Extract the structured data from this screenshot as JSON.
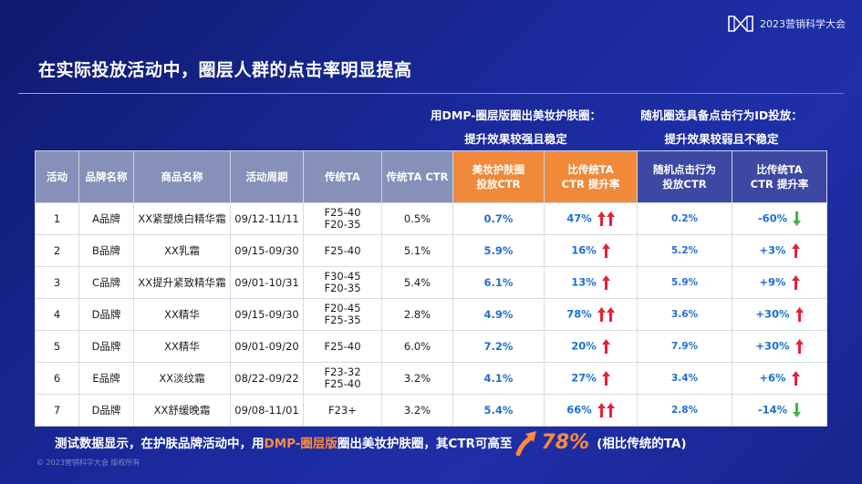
{
  "brand": {
    "logo_text": "2023营销科学大会"
  },
  "title": "在实际投放活动中，圈层人群的点击率明显提高",
  "group_headers": {
    "dmp_line1": "用DMP-圈层版圈出美妆护肤圈：",
    "dmp_line2": "提升效果较强且稳定",
    "random_line1": "随机圈选具备点击行为ID投放：",
    "random_line2": "提升效果较弱且不稳定"
  },
  "table": {
    "headers": {
      "activity": "活动",
      "brand": "品牌名称",
      "product": "商品名称",
      "period": "活动周期",
      "ta": "传统TA",
      "ta_ctr": "传统TA CTR",
      "dmp_ctr_l1": "美妆护肤圈",
      "dmp_ctr_l2": "投放CTR",
      "dmp_lift_l1": "比传统TA",
      "dmp_lift_l2": "CTR 提升率",
      "rand_ctr_l1": "随机点击行为",
      "rand_ctr_l2": "投放CTR",
      "rand_lift_l1": "比传统TA",
      "rand_lift_l2": "CTR 提升率"
    },
    "rows": [
      {
        "activity": "1",
        "brand": "A品牌",
        "product": "XX紧塑焕白精华霜",
        "period": "09/12-11/11",
        "ta_l1": "F25-40",
        "ta_l2": "F20-35",
        "ta_ctr": "0.5%",
        "dmp_ctr": "0.7%",
        "dmp_lift": "47%",
        "dmp_arrows": 2,
        "rand_ctr": "0.2%",
        "rand_lift": "-60%",
        "rand_dir": "down"
      },
      {
        "activity": "2",
        "brand": "B品牌",
        "product": "XX乳霜",
        "period": "09/15-09/30",
        "ta_l1": "F25-40",
        "ta_l2": "",
        "ta_ctr": "5.1%",
        "dmp_ctr": "5.9%",
        "dmp_lift": "16%",
        "dmp_arrows": 1,
        "rand_ctr": "5.2%",
        "rand_lift": "+3%",
        "rand_dir": "up"
      },
      {
        "activity": "3",
        "brand": "C品牌",
        "product": "XX提升紧致精华霜",
        "period": "09/01-10/31",
        "ta_l1": "F30-45",
        "ta_l2": "F20-35",
        "ta_ctr": "5.4%",
        "dmp_ctr": "6.1%",
        "dmp_lift": "13%",
        "dmp_arrows": 1,
        "rand_ctr": "5.9%",
        "rand_lift": "+9%",
        "rand_dir": "up"
      },
      {
        "activity": "4",
        "brand": "D品牌",
        "product": "XX精华",
        "period": "09/15-09/30",
        "ta_l1": "F20-45",
        "ta_l2": "F25-35",
        "ta_ctr": "2.8%",
        "dmp_ctr": "4.9%",
        "dmp_lift": "78%",
        "dmp_arrows": 2,
        "rand_ctr": "3.6%",
        "rand_lift": "+30%",
        "rand_dir": "up"
      },
      {
        "activity": "5",
        "brand": "D品牌",
        "product": "XX精华",
        "period": "09/01-09/20",
        "ta_l1": "F25-40",
        "ta_l2": "",
        "ta_ctr": "6.0%",
        "dmp_ctr": "7.2%",
        "dmp_lift": "20%",
        "dmp_arrows": 1,
        "rand_ctr": "7.9%",
        "rand_lift": "+30%",
        "rand_dir": "up"
      },
      {
        "activity": "6",
        "brand": "E品牌",
        "product": "XX淡纹霜",
        "period": "08/22-09/22",
        "ta_l1": "F23-32",
        "ta_l2": "F25-40",
        "ta_ctr": "3.2%",
        "dmp_ctr": "4.1%",
        "dmp_lift": "27%",
        "dmp_arrows": 1,
        "rand_ctr": "3.4%",
        "rand_lift": "+6%",
        "rand_dir": "up"
      },
      {
        "activity": "7",
        "brand": "D品牌",
        "product": "XX舒缓晚霜",
        "period": "09/08-11/01",
        "ta_l1": "F23+",
        "ta_l2": "",
        "ta_ctr": "3.2%",
        "dmp_ctr": "5.4%",
        "dmp_lift": "66%",
        "dmp_arrows": 2,
        "rand_ctr": "2.8%",
        "rand_lift": "-14%",
        "rand_dir": "down"
      }
    ]
  },
  "footer": {
    "part1": "测试数据显示，在护肤品牌活动中，用",
    "highlight": "DMP-圈层版",
    "part2": "圈出美妆护肤圈，其CTR可高至",
    "big_value": "78%",
    "part3": "(相比传统的TA)"
  },
  "copyright": "© 2023营销科学大会 版权所有",
  "icons": {
    "up": "arrow-up-icon",
    "down": "arrow-down-icon",
    "logo": "logo-icon"
  },
  "colors": {
    "arrow_up": "#e8203a",
    "arrow_down": "#3cb84a",
    "highlight": "#ff8a3a",
    "value_blue": "#1e6fd0"
  }
}
